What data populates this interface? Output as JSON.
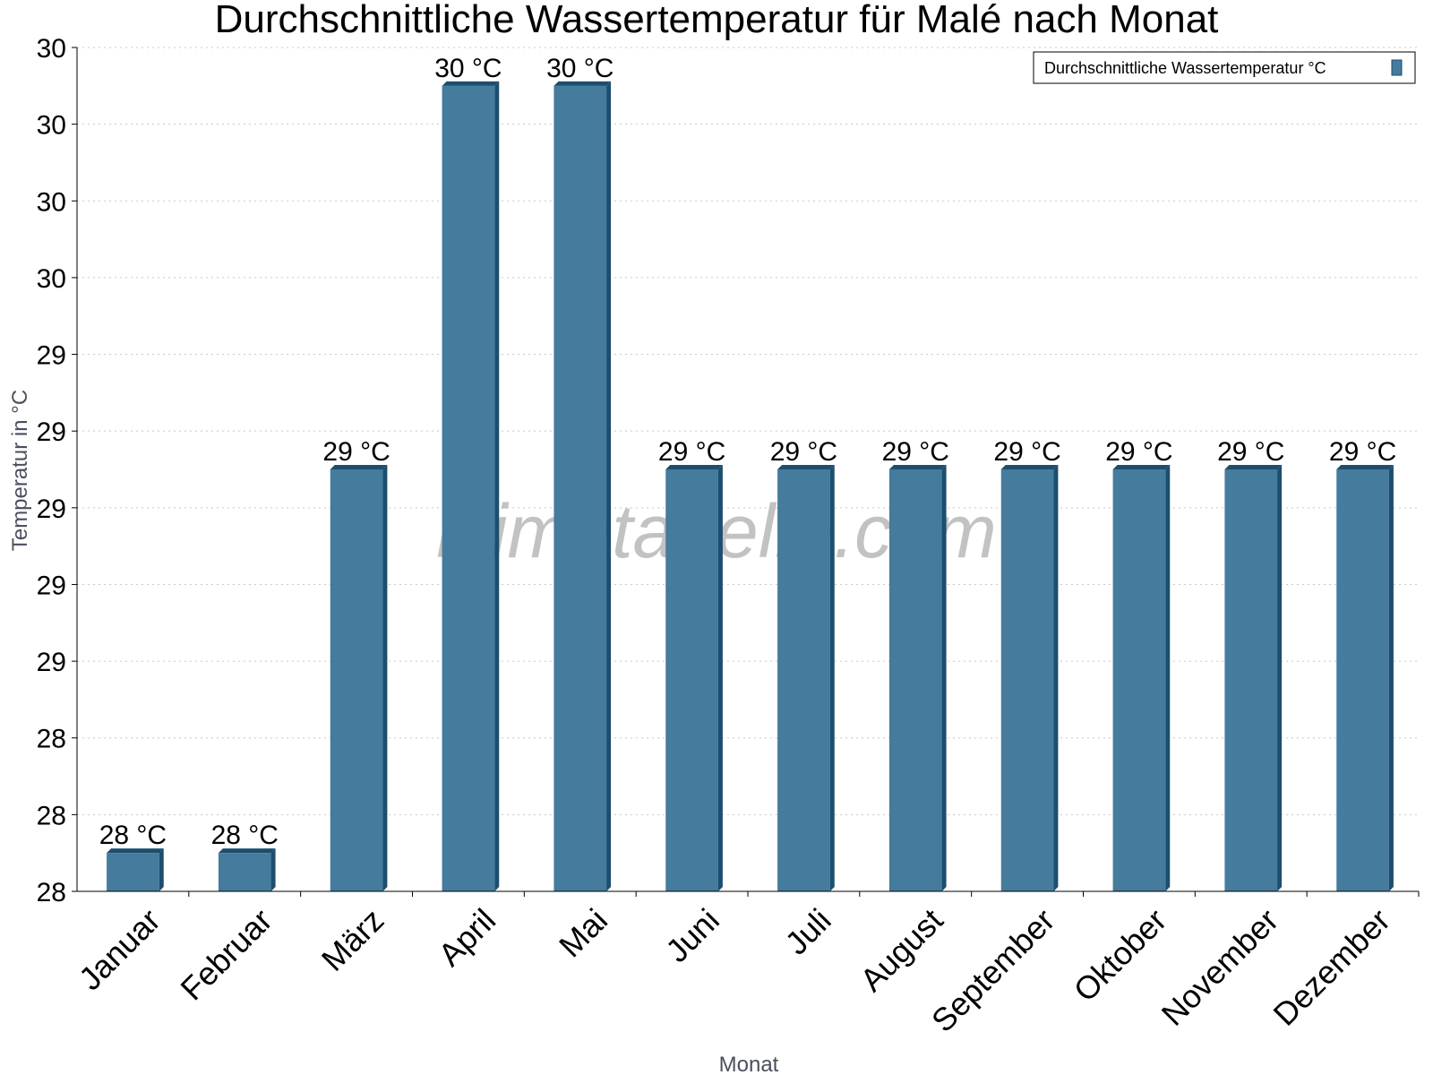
{
  "chart_data": {
    "type": "bar",
    "title": "Durchschnittliche Wassertemperatur für Malé nach Monat",
    "xlabel": "Monat",
    "ylabel": "Temperatur in °C",
    "categories": [
      "Januar",
      "Februar",
      "März",
      "April",
      "Mai",
      "Juni",
      "Juli",
      "August",
      "September",
      "Oktober",
      "November",
      "Dezember"
    ],
    "series": [
      {
        "name": "Durchschnittliche Wassertemperatur °C",
        "values": [
          28.0,
          28.0,
          29.0,
          30.0,
          30.0,
          29.0,
          29.0,
          29.0,
          29.0,
          29.0,
          29.0,
          29.0
        ],
        "labels": [
          "28 °C",
          "28 °C",
          "29 °C",
          "30 °C",
          "30 °C",
          "29 °C",
          "29 °C",
          "29 °C",
          "29 °C",
          "29 °C",
          "29 °C",
          "29 °C"
        ],
        "color": "#457b9d",
        "edge_color": "#1d4e6e"
      }
    ],
    "ylim": [
      27.9,
      30.1
    ],
    "yticks": [
      27.9,
      28.1,
      28.3,
      28.5,
      28.7,
      28.9,
      29.1,
      29.3,
      29.5,
      29.7,
      29.9,
      30.1
    ],
    "ytick_labels": [
      "28",
      "28",
      "28",
      "29",
      "29",
      "29",
      "29",
      "29",
      "30",
      "30",
      "30",
      "30"
    ],
    "grid": true,
    "legend": "top-right",
    "watermark": "klimatabelle.com"
  }
}
